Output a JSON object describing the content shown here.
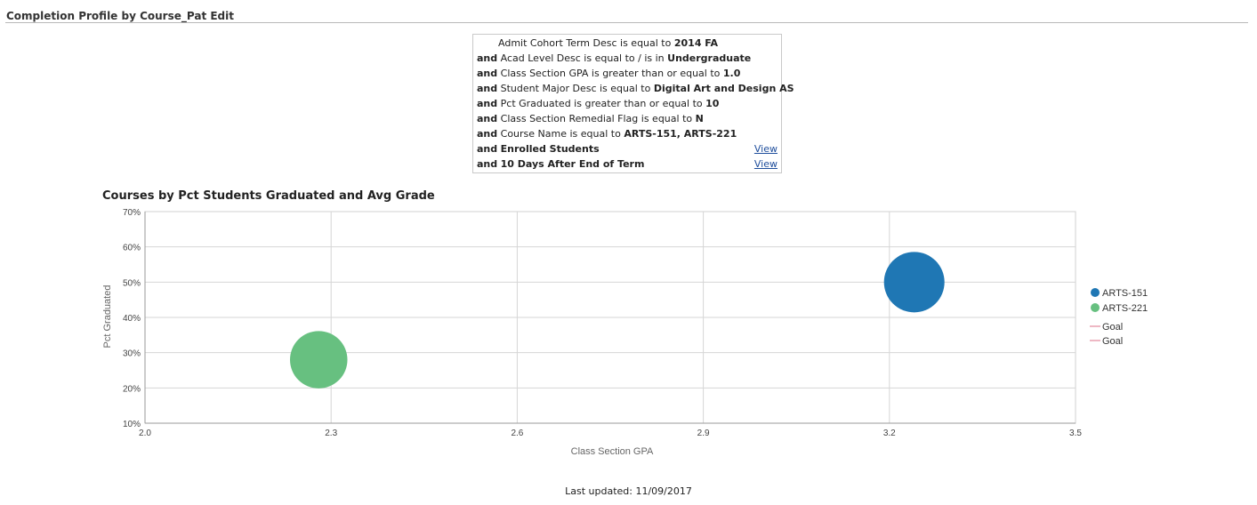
{
  "header": {
    "title": "Completion Profile by Course_Pat Edit"
  },
  "filters": [
    {
      "conj": "",
      "label": "Admit Cohort Term Desc is equal to",
      "value": "2014 FA",
      "link": ""
    },
    {
      "conj": "and",
      "label": "Acad Level Desc is equal to / is in",
      "value": "Undergraduate",
      "link": ""
    },
    {
      "conj": "and",
      "label": "Class Section GPA is greater than or equal to",
      "value": "1.0",
      "link": ""
    },
    {
      "conj": "and",
      "label": "Student Major Desc is equal to",
      "value": "Digital Art and Design AS",
      "link": ""
    },
    {
      "conj": "and",
      "label": "Pct Graduated is greater than or equal to",
      "value": "10",
      "link": ""
    },
    {
      "conj": "and",
      "label": "Class Section Remedial Flag is equal to",
      "value": "N",
      "link": ""
    },
    {
      "conj": "and",
      "label": "Course Name is equal to",
      "value": "ARTS-151, ARTS-221",
      "link": ""
    },
    {
      "conj": "and",
      "label": "Enrolled Students",
      "value": "",
      "link": "View"
    },
    {
      "conj": "and",
      "label": "10 Days After End of Term",
      "value": "",
      "link": "View"
    }
  ],
  "chart_data": {
    "type": "scatter",
    "title": "Courses by Pct Students Graduated and Avg Grade",
    "xlabel": "Class Section GPA",
    "ylabel": "Pct Graduated",
    "xlim": [
      2.0,
      3.5
    ],
    "ylim": [
      10,
      70
    ],
    "x_ticks": [
      "2.0",
      "2.3",
      "2.6",
      "2.9",
      "3.2",
      "3.5"
    ],
    "y_ticks": [
      "10%",
      "20%",
      "30%",
      "40%",
      "50%",
      "60%",
      "70%"
    ],
    "grid": true,
    "legend_position": "right",
    "series": [
      {
        "name": "ARTS-151",
        "x": 3.24,
        "y": 50,
        "size": 1.0,
        "color": "#1f77b4"
      },
      {
        "name": "ARTS-221",
        "x": 2.28,
        "y": 28,
        "size": 0.9,
        "color": "#67c080"
      }
    ],
    "reference_lines": [
      {
        "name": "Goal",
        "color": "#e8a0b0"
      },
      {
        "name": "Goal",
        "color": "#e8a0b0"
      }
    ]
  },
  "footer": {
    "last_updated": "Last updated: 11/09/2017"
  }
}
